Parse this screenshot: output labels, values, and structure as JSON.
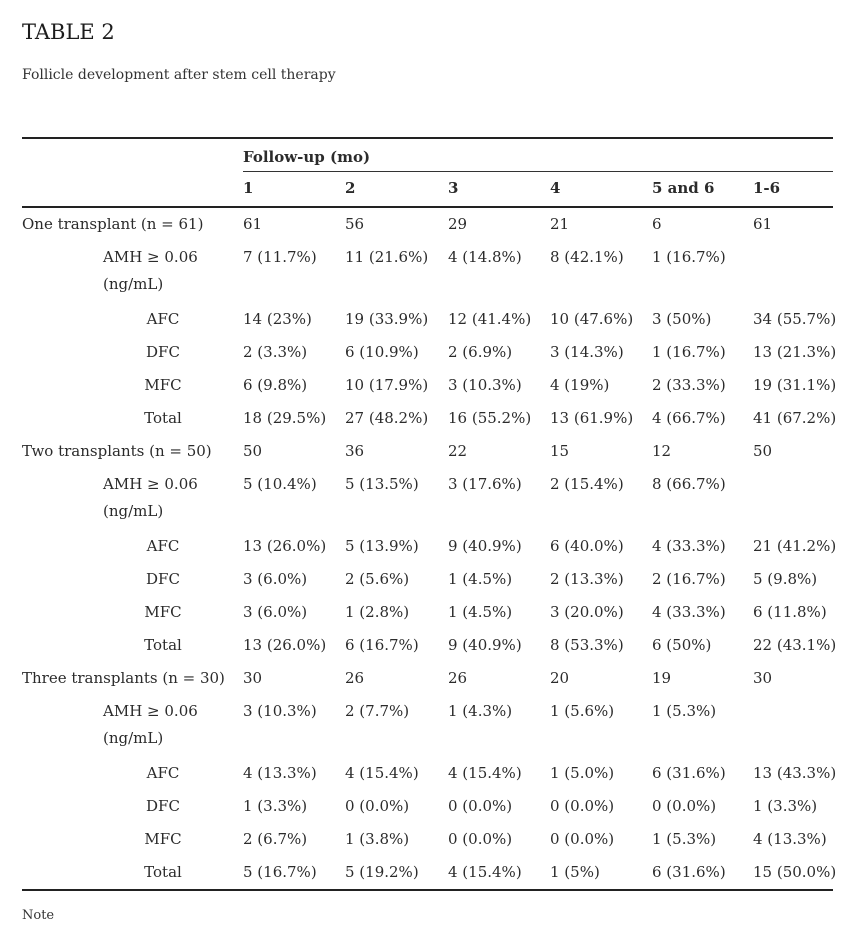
{
  "page": {
    "title": "TABLE 2",
    "subtitle": "Follicle development after stem cell therapy",
    "note": "Note"
  },
  "colors": {
    "text": "#2b2b2b",
    "rule": "#222222",
    "background": "#ffffff"
  },
  "table": {
    "header": {
      "group_label": "Follow-up (mo)",
      "columns": [
        "1",
        "2",
        "3",
        "4",
        "5 and 6",
        "1-6"
      ]
    },
    "rows": [
      {
        "label": "One transplant (n = 61)",
        "label2": "",
        "indent": 0,
        "values": [
          "61",
          "56",
          "29",
          "21",
          "6",
          "61"
        ]
      },
      {
        "label": "AMH ≥ 0.06",
        "label2": "(ng/mL)",
        "indent": 1,
        "values": [
          "7 (11.7%)",
          "11 (21.6%)",
          "4 (14.8%)",
          "8 (42.1%)",
          "1 (16.7%)",
          ""
        ]
      },
      {
        "label": "AFC",
        "label2": "",
        "indent": 2,
        "values": [
          "14 (23%)",
          "19 (33.9%)",
          "12 (41.4%)",
          "10 (47.6%)",
          "3 (50%)",
          "34 (55.7%)"
        ]
      },
      {
        "label": "DFC",
        "label2": "",
        "indent": 2,
        "values": [
          "2 (3.3%)",
          "6 (10.9%)",
          "2 (6.9%)",
          "3 (14.3%)",
          "1 (16.7%)",
          "13 (21.3%)"
        ]
      },
      {
        "label": "MFC",
        "label2": "",
        "indent": 2,
        "values": [
          "6 (9.8%)",
          "10 (17.9%)",
          "3 (10.3%)",
          "4 (19%)",
          "2 (33.3%)",
          "19 (31.1%)"
        ]
      },
      {
        "label": "Total",
        "label2": "",
        "indent": 2,
        "values": [
          "18 (29.5%)",
          "27 (48.2%)",
          "16 (55.2%)",
          "13 (61.9%)",
          "4 (66.7%)",
          "41 (67.2%)"
        ]
      },
      {
        "label": "Two transplants (n = 50)",
        "label2": "",
        "indent": 0,
        "values": [
          "50",
          "36",
          "22",
          "15",
          "12",
          "50"
        ]
      },
      {
        "label": "AMH ≥ 0.06",
        "label2": "(ng/mL)",
        "indent": 1,
        "values": [
          "5 (10.4%)",
          "5 (13.5%)",
          "3 (17.6%)",
          "2 (15.4%)",
          "8 (66.7%)",
          ""
        ]
      },
      {
        "label": "AFC",
        "label2": "",
        "indent": 2,
        "values": [
          "13 (26.0%)",
          "5 (13.9%)",
          "9 (40.9%)",
          "6 (40.0%)",
          "4 (33.3%)",
          "21 (41.2%)"
        ]
      },
      {
        "label": "DFC",
        "label2": "",
        "indent": 2,
        "values": [
          "3 (6.0%)",
          "2 (5.6%)",
          "1 (4.5%)",
          "2 (13.3%)",
          "2 (16.7%)",
          "5 (9.8%)"
        ]
      },
      {
        "label": "MFC",
        "label2": "",
        "indent": 2,
        "values": [
          "3 (6.0%)",
          "1 (2.8%)",
          "1 (4.5%)",
          "3 (20.0%)",
          "4 (33.3%)",
          "6 (11.8%)"
        ]
      },
      {
        "label": "Total",
        "label2": "",
        "indent": 2,
        "values": [
          "13 (26.0%)",
          "6 (16.7%)",
          "9 (40.9%)",
          "8 (53.3%)",
          "6 (50%)",
          "22 (43.1%)"
        ]
      },
      {
        "label": "Three transplants (n = 30)",
        "label2": "",
        "indent": 0,
        "values": [
          "30",
          "26",
          "26",
          "20",
          "19",
          "30"
        ]
      },
      {
        "label": "AMH ≥ 0.06",
        "label2": "(ng/mL)",
        "indent": 1,
        "values": [
          "3 (10.3%)",
          "2 (7.7%)",
          "1 (4.3%)",
          "1 (5.6%)",
          "1 (5.3%)",
          ""
        ]
      },
      {
        "label": "AFC",
        "label2": "",
        "indent": 2,
        "values": [
          "4 (13.3%)",
          "4 (15.4%)",
          "4 (15.4%)",
          "1 (5.0%)",
          "6 (31.6%)",
          "13 (43.3%)"
        ]
      },
      {
        "label": "DFC",
        "label2": "",
        "indent": 2,
        "values": [
          "1 (3.3%)",
          "0 (0.0%)",
          "0 (0.0%)",
          "0 (0.0%)",
          "0 (0.0%)",
          "1 (3.3%)"
        ]
      },
      {
        "label": "MFC",
        "label2": "",
        "indent": 2,
        "values": [
          "2 (6.7%)",
          "1 (3.8%)",
          "0 (0.0%)",
          "0 (0.0%)",
          "1 (5.3%)",
          "4 (13.3%)"
        ]
      },
      {
        "label": "Total",
        "label2": "",
        "indent": 2,
        "values": [
          "5 (16.7%)",
          "5 (19.2%)",
          "4 (15.4%)",
          "1 (5%)",
          "6 (31.6%)",
          "15 (50.0%)"
        ]
      }
    ]
  }
}
